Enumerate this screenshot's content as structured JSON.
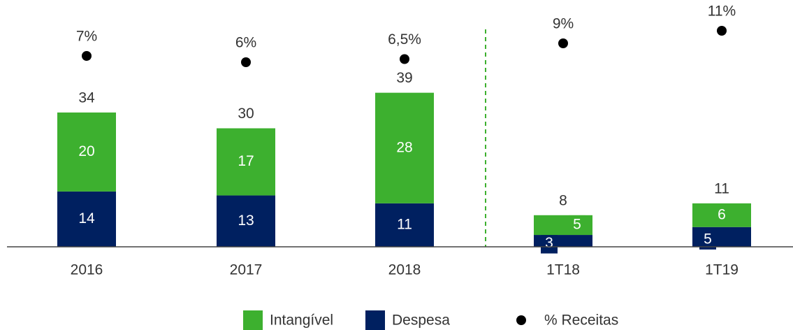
{
  "chart_data": {
    "type": "bar",
    "categories": [
      "2016",
      "2017",
      "2018",
      "1T18",
      "1T19"
    ],
    "series": [
      {
        "name": "Intangível",
        "color": "#3db02f",
        "values": [
          20,
          17,
          28,
          5,
          6
        ]
      },
      {
        "name": "Despesa",
        "color": "#002060",
        "values": [
          14,
          13,
          11,
          3,
          5
        ]
      }
    ],
    "totals": [
      34,
      30,
      39,
      8,
      11
    ],
    "points": {
      "name": "% Receitas",
      "color": "#000000",
      "values": [
        7,
        6,
        6.5,
        9,
        11
      ],
      "value_labels": [
        "7%",
        "6%",
        "6,5%",
        "9%",
        "11%"
      ]
    }
  }
}
